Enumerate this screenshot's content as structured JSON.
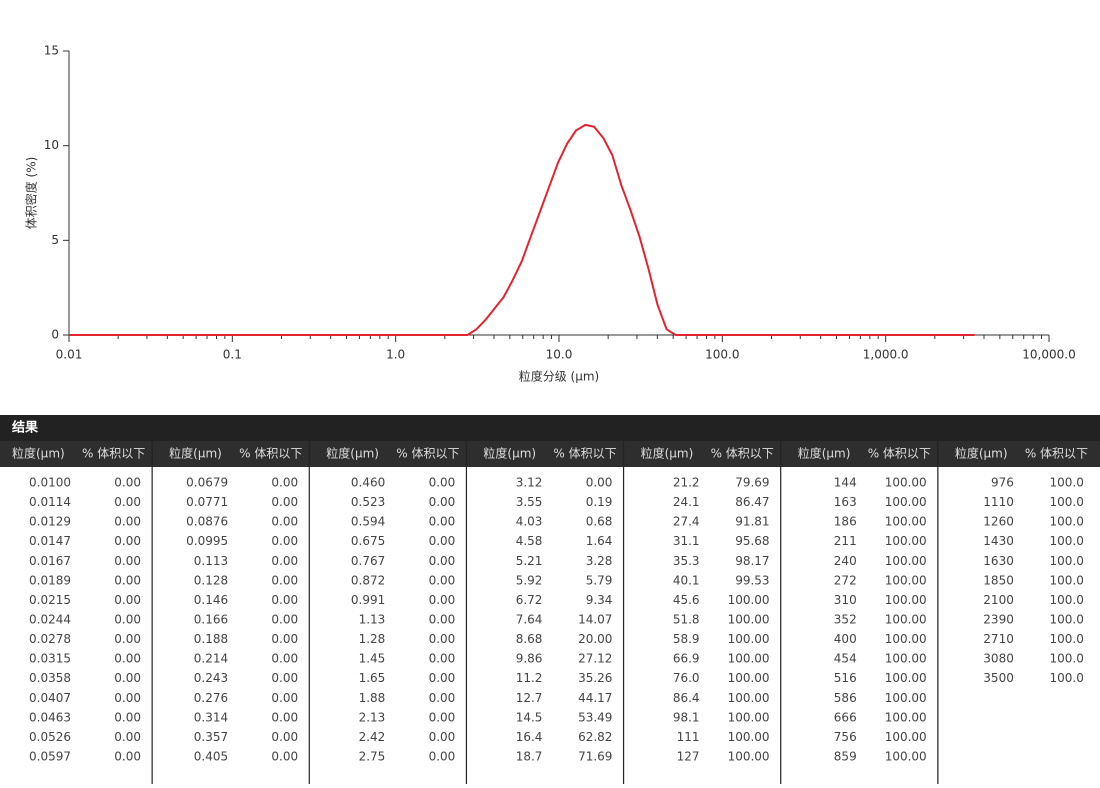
{
  "chart_data": {
    "type": "line",
    "xlabel": "粒度分级 (μm)",
    "ylabel": "体积密度 (%)",
    "log_x": true,
    "color": "#e3232d",
    "x": [
      0.01,
      2.75,
      3.12,
      3.55,
      4.03,
      4.58,
      5.21,
      5.92,
      6.72,
      7.64,
      8.68,
      9.86,
      11.2,
      12.7,
      14.5,
      16.4,
      18.7,
      21.2,
      24.1,
      27.4,
      31.1,
      35.3,
      40.1,
      45.6,
      51.8,
      3500
    ],
    "values": [
      0,
      0,
      0.3,
      0.8,
      1.4,
      2.0,
      2.9,
      3.9,
      5.2,
      6.5,
      7.8,
      9.1,
      10.1,
      10.8,
      11.1,
      11.0,
      10.4,
      9.5,
      7.9,
      6.6,
      5.2,
      3.5,
      1.6,
      0.3,
      0,
      0
    ],
    "xlim": [
      0.01,
      10000
    ],
    "xticks": [
      0.01,
      0.1,
      {
        "value": 1,
        "label": "1.0"
      },
      {
        "value": 10,
        "label": "10.0"
      },
      {
        "value": 100,
        "label": "100.0"
      },
      {
        "value": 1000,
        "label": "1,000.0"
      },
      {
        "value": 10000,
        "label": "10,000.0"
      }
    ],
    "ylim": [
      0,
      15
    ],
    "yticks": [
      0,
      5,
      10,
      15
    ]
  },
  "table": {
    "title": "结果",
    "groups": [
      {
        "headers": [
          "粒度(μm)",
          "% 体积以下"
        ],
        "rows": [
          [
            "0.0100",
            "0.00"
          ],
          [
            "0.0114",
            "0.00"
          ],
          [
            "0.0129",
            "0.00"
          ],
          [
            "0.0147",
            "0.00"
          ],
          [
            "0.0167",
            "0.00"
          ],
          [
            "0.0189",
            "0.00"
          ],
          [
            "0.0215",
            "0.00"
          ],
          [
            "0.0244",
            "0.00"
          ],
          [
            "0.0278",
            "0.00"
          ],
          [
            "0.0315",
            "0.00"
          ],
          [
            "0.0358",
            "0.00"
          ],
          [
            "0.0407",
            "0.00"
          ],
          [
            "0.0463",
            "0.00"
          ],
          [
            "0.0526",
            "0.00"
          ],
          [
            "0.0597",
            "0.00"
          ]
        ]
      },
      {
        "headers": [
          "粒度(μm)",
          "% 体积以下"
        ],
        "rows": [
          [
            "0.0679",
            "0.00"
          ],
          [
            "0.0771",
            "0.00"
          ],
          [
            "0.0876",
            "0.00"
          ],
          [
            "0.0995",
            "0.00"
          ],
          [
            "0.113",
            "0.00"
          ],
          [
            "0.128",
            "0.00"
          ],
          [
            "0.146",
            "0.00"
          ],
          [
            "0.166",
            "0.00"
          ],
          [
            "0.188",
            "0.00"
          ],
          [
            "0.214",
            "0.00"
          ],
          [
            "0.243",
            "0.00"
          ],
          [
            "0.276",
            "0.00"
          ],
          [
            "0.314",
            "0.00"
          ],
          [
            "0.357",
            "0.00"
          ],
          [
            "0.405",
            "0.00"
          ]
        ]
      },
      {
        "headers": [
          "粒度(μm)",
          "% 体积以下"
        ],
        "rows": [
          [
            "0.460",
            "0.00"
          ],
          [
            "0.523",
            "0.00"
          ],
          [
            "0.594",
            "0.00"
          ],
          [
            "0.675",
            "0.00"
          ],
          [
            "0.767",
            "0.00"
          ],
          [
            "0.872",
            "0.00"
          ],
          [
            "0.991",
            "0.00"
          ],
          [
            "1.13",
            "0.00"
          ],
          [
            "1.28",
            "0.00"
          ],
          [
            "1.45",
            "0.00"
          ],
          [
            "1.65",
            "0.00"
          ],
          [
            "1.88",
            "0.00"
          ],
          [
            "2.13",
            "0.00"
          ],
          [
            "2.42",
            "0.00"
          ],
          [
            "2.75",
            "0.00"
          ]
        ]
      },
      {
        "headers": [
          "粒度(μm)",
          "% 体积以下"
        ],
        "rows": [
          [
            "3.12",
            "0.00"
          ],
          [
            "3.55",
            "0.19"
          ],
          [
            "4.03",
            "0.68"
          ],
          [
            "4.58",
            "1.64"
          ],
          [
            "5.21",
            "3.28"
          ],
          [
            "5.92",
            "5.79"
          ],
          [
            "6.72",
            "9.34"
          ],
          [
            "7.64",
            "14.07"
          ],
          [
            "8.68",
            "20.00"
          ],
          [
            "9.86",
            "27.12"
          ],
          [
            "11.2",
            "35.26"
          ],
          [
            "12.7",
            "44.17"
          ],
          [
            "14.5",
            "53.49"
          ],
          [
            "16.4",
            "62.82"
          ],
          [
            "18.7",
            "71.69"
          ]
        ]
      },
      {
        "headers": [
          "粒度(μm)",
          "% 体积以下"
        ],
        "rows": [
          [
            "21.2",
            "79.69"
          ],
          [
            "24.1",
            "86.47"
          ],
          [
            "27.4",
            "91.81"
          ],
          [
            "31.1",
            "95.68"
          ],
          [
            "35.3",
            "98.17"
          ],
          [
            "40.1",
            "99.53"
          ],
          [
            "45.6",
            "100.00"
          ],
          [
            "51.8",
            "100.00"
          ],
          [
            "58.9",
            "100.00"
          ],
          [
            "66.9",
            "100.00"
          ],
          [
            "76.0",
            "100.00"
          ],
          [
            "86.4",
            "100.00"
          ],
          [
            "98.1",
            "100.00"
          ],
          [
            "111",
            "100.00"
          ],
          [
            "127",
            "100.00"
          ]
        ]
      },
      {
        "headers": [
          "粒度(μm)",
          "% 体积以下"
        ],
        "rows": [
          [
            "144",
            "100.00"
          ],
          [
            "163",
            "100.00"
          ],
          [
            "186",
            "100.00"
          ],
          [
            "211",
            "100.00"
          ],
          [
            "240",
            "100.00"
          ],
          [
            "272",
            "100.00"
          ],
          [
            "310",
            "100.00"
          ],
          [
            "352",
            "100.00"
          ],
          [
            "400",
            "100.00"
          ],
          [
            "454",
            "100.00"
          ],
          [
            "516",
            "100.00"
          ],
          [
            "586",
            "100.00"
          ],
          [
            "666",
            "100.00"
          ],
          [
            "756",
            "100.00"
          ],
          [
            "859",
            "100.00"
          ]
        ]
      },
      {
        "headers": [
          "粒度(μm)",
          "% 体积以下"
        ],
        "rows": [
          [
            "976",
            "100.0"
          ],
          [
            "1110",
            "100.0"
          ],
          [
            "1260",
            "100.0"
          ],
          [
            "1430",
            "100.0"
          ],
          [
            "1630",
            "100.0"
          ],
          [
            "1850",
            "100.0"
          ],
          [
            "2100",
            "100.0"
          ],
          [
            "2390",
            "100.0"
          ],
          [
            "2710",
            "100.0"
          ],
          [
            "3080",
            "100.0"
          ],
          [
            "3500",
            "100.0"
          ]
        ]
      }
    ]
  }
}
